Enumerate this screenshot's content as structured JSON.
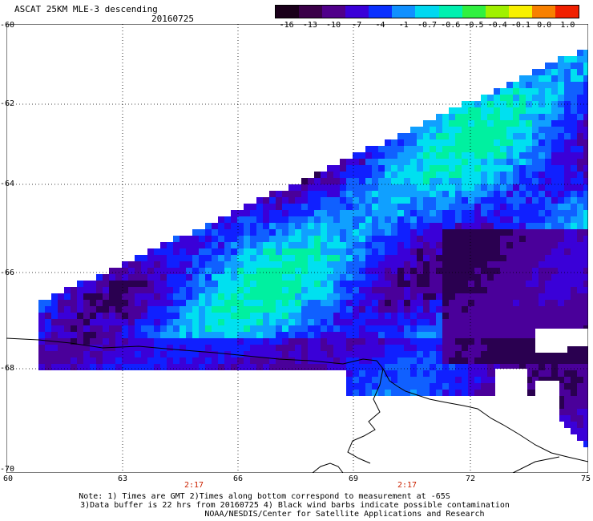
{
  "title": "ASCAT 25KM MLE-3 descending",
  "date": "20160725",
  "colorbar": {
    "labels": [
      "-16",
      "-13",
      "-10",
      "-7",
      "-4",
      "-1",
      "-0.7",
      "-0.6",
      "-0.5",
      "-0.4",
      "-0.1",
      "0.0",
      "1.0"
    ],
    "colors": [
      "#1a001a",
      "#3a0048",
      "#50008a",
      "#3a00d8",
      "#0a30ff",
      "#1090ff",
      "#00d8f0",
      "#00f0b0",
      "#30f040",
      "#a0f000",
      "#f8f000",
      "#f88000",
      "#f02000"
    ]
  },
  "lat_labels": [
    "-60",
    "-62",
    "-64",
    "-66",
    "-68",
    "-70"
  ],
  "lon_labels": [
    "60",
    "63",
    "66",
    "69",
    "72",
    "75"
  ],
  "time_labels": [
    "2:17",
    "2:17"
  ],
  "notes": [
    "Note: 1) Times are GMT 2)Times along bottom correspond to measurement at -65S",
    "3)Data buffer is 22 hrs from 20160725 4) Black wind barbs indicate possible contamination",
    "NOAA/NESDIS/Center for Satellite Applications and Research"
  ]
}
